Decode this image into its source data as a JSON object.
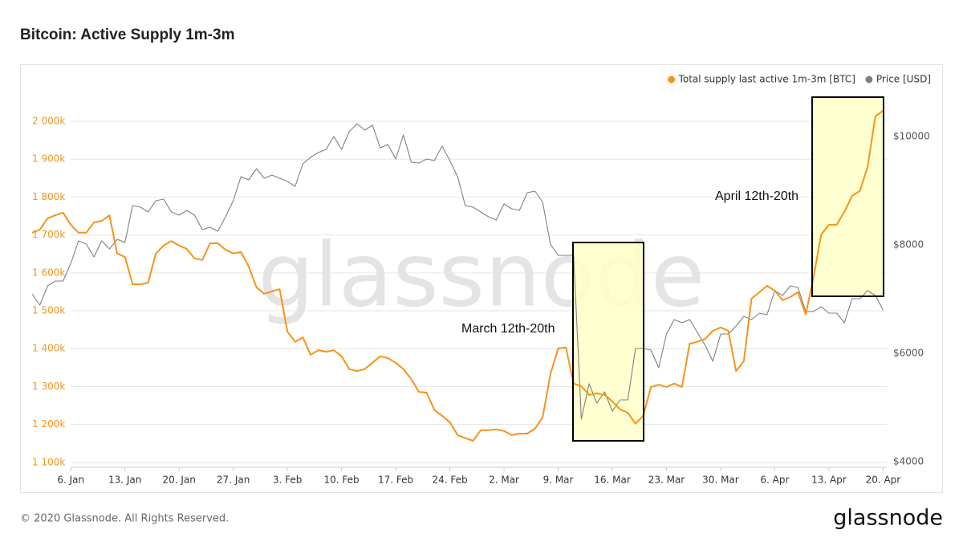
{
  "chart_data": {
    "type": "line",
    "title": "Bitcoin: Active Supply 1m-3m",
    "categories": [
      null,
      null,
      null,
      null,
      null,
      "6. Jan",
      null,
      null,
      null,
      null,
      null,
      null,
      "13. Jan",
      null,
      null,
      null,
      null,
      null,
      null,
      "20. Jan",
      null,
      null,
      null,
      null,
      null,
      null,
      "27. Jan",
      null,
      null,
      null,
      null,
      null,
      null,
      "3. Feb",
      null,
      null,
      null,
      null,
      null,
      null,
      "10. Feb",
      null,
      null,
      null,
      null,
      null,
      null,
      "17. Feb",
      null,
      null,
      null,
      null,
      null,
      null,
      "24. Feb",
      null,
      null,
      null,
      null,
      null,
      null,
      "2. Mar",
      null,
      null,
      null,
      null,
      null,
      null,
      "9. Mar",
      null,
      null,
      null,
      null,
      null,
      null,
      "16. Mar",
      null,
      null,
      null,
      null,
      null,
      null,
      "23. Mar",
      null,
      null,
      null,
      null,
      null,
      null,
      "30. Mar",
      null,
      null,
      null,
      null,
      null,
      null,
      "6. Apr",
      null,
      null,
      null,
      null,
      null,
      null,
      "13. Apr",
      null,
      null,
      null,
      null,
      null,
      null,
      "20. Apr"
    ],
    "series": [
      {
        "name": "Total supply last active 1m-3m [BTC]",
        "color": "#f7931a",
        "values": [
          1706000,
          1714000,
          1744000,
          1752000,
          1759000,
          1727000,
          1706000,
          1706000,
          1733000,
          1737000,
          1752000,
          1651000,
          1642000,
          1570000,
          1570000,
          1574000,
          1651000,
          1672000,
          1684000,
          1672000,
          1663000,
          1638000,
          1634000,
          1678000,
          1678000,
          1661000,
          1651000,
          1655000,
          1617000,
          1562000,
          1545000,
          1551000,
          1557000,
          1445000,
          1418000,
          1430000,
          1384000,
          1396000,
          1392000,
          1396000,
          1380000,
          1346000,
          1341000,
          1346000,
          1363000,
          1380000,
          1375000,
          1363000,
          1346000,
          1320000,
          1286000,
          1284000,
          1238000,
          1223000,
          1206000,
          1172000,
          1164000,
          1157000,
          1185000,
          1185000,
          1187000,
          1183000,
          1172000,
          1176000,
          1176000,
          1189000,
          1219000,
          1333000,
          1401000,
          1403000,
          1308000,
          1301000,
          1278000,
          1282000,
          1278000,
          1261000,
          1240000,
          1231000,
          1202000,
          1223000,
          1299000,
          1305000,
          1299000,
          1308000,
          1299000,
          1413000,
          1418000,
          1426000,
          1447000,
          1456000,
          1447000,
          1341000,
          1367000,
          1532000,
          1549000,
          1566000,
          1553000,
          1528000,
          1536000,
          1549000,
          1490000,
          1587000,
          1701000,
          1727000,
          1727000,
          1761000,
          1803000,
          1816000,
          1879000,
          2013000,
          2028000
        ]
      },
      {
        "name": "Price [USD]",
        "color": "#808080",
        "axis": "y2",
        "values": [
          7096,
          6889,
          7244,
          7333,
          7333,
          7659,
          8074,
          8015,
          7778,
          8074,
          7926,
          8104,
          8044,
          8726,
          8696,
          8607,
          8815,
          8844,
          8607,
          8548,
          8637,
          8548,
          8281,
          8326,
          8252,
          8519,
          8815,
          9259,
          9200,
          9407,
          9230,
          9289,
          9230,
          9170,
          9081,
          9496,
          9615,
          9704,
          9763,
          10000,
          9763,
          10089,
          10237,
          10118,
          10207,
          9793,
          9852,
          9585,
          10030,
          9526,
          9511,
          9585,
          9556,
          9822,
          9556,
          9259,
          8726,
          8696,
          8607,
          8519,
          8459,
          8756,
          8667,
          8637,
          8963,
          8993,
          8785,
          8015,
          7807,
          7807,
          7807,
          4785,
          5437,
          5081,
          5289,
          4933,
          5141,
          5141,
          6089,
          6089,
          6059,
          5733,
          6356,
          6622,
          6563,
          6622,
          6385,
          6148,
          5852,
          6356,
          6356,
          6504,
          6681,
          6622,
          6741,
          6711,
          7156,
          7067,
          7244,
          7215,
          6770,
          6770,
          6859,
          6741,
          6741,
          6563,
          7007,
          7007,
          7156,
          7067,
          6800
        ]
      }
    ],
    "ylim": [
      1087000,
      2108000
    ],
    "yticks": [
      {
        "value": 1100000,
        "label": "1 100k"
      },
      {
        "value": 1200000,
        "label": "1 200k"
      },
      {
        "value": 1300000,
        "label": "1 300k"
      },
      {
        "value": 1400000,
        "label": "1 400k"
      },
      {
        "value": 1500000,
        "label": "1 500k"
      },
      {
        "value": 1600000,
        "label": "1 600k"
      },
      {
        "value": 1700000,
        "label": "1 700k"
      },
      {
        "value": 1800000,
        "label": "1 800k"
      },
      {
        "value": 1900000,
        "label": "1 900k"
      },
      {
        "value": 2000000,
        "label": "2 000k"
      }
    ],
    "y2lim": [
      3896,
      11037
    ],
    "y2ticks": [
      {
        "value": 4000,
        "label": "$4000"
      },
      {
        "value": 6000,
        "label": "$6000"
      },
      {
        "value": 8000,
        "label": "$8000"
      },
      {
        "value": 10000,
        "label": "$10000"
      }
    ],
    "grid": true,
    "legend": "top-right",
    "annotations": [
      "March 12th-20th",
      "April 12th-20th"
    ]
  },
  "watermark": "glassnode",
  "footer": "© 2020 Glassnode. All Rights Reserved.",
  "logo": "glassnode"
}
